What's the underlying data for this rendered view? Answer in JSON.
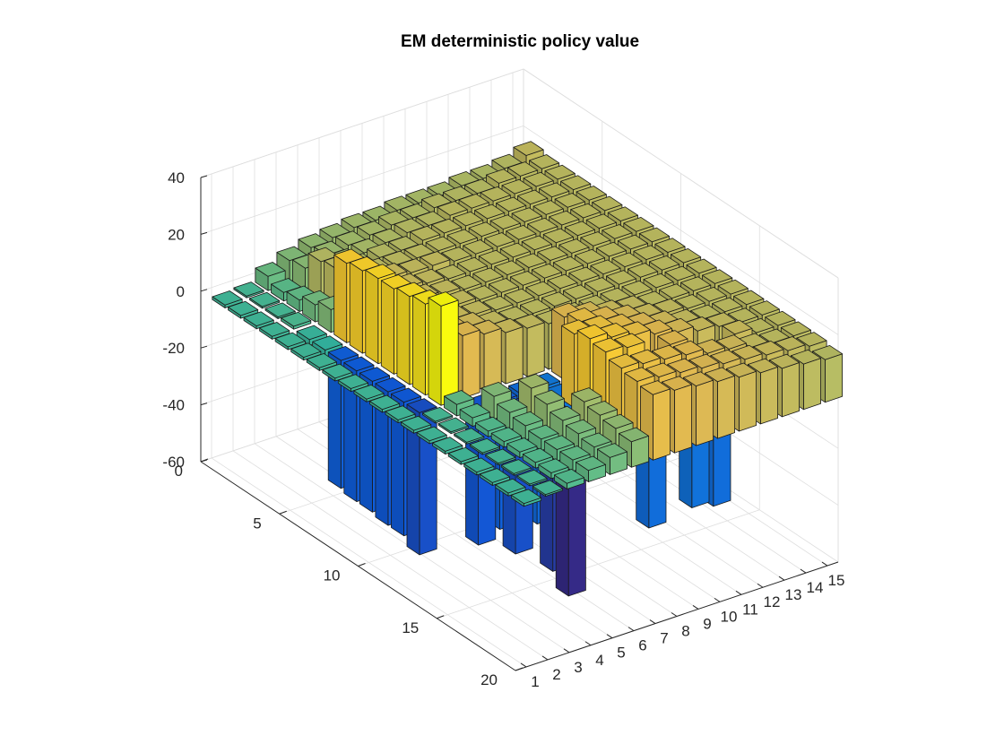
{
  "chart_data": {
    "type": "bar3",
    "title": "EM deterministic policy value",
    "xlabel": "",
    "ylabel": "",
    "zlabel": "",
    "x_ticks": [
      1,
      2,
      3,
      4,
      5,
      6,
      7,
      8,
      9,
      10,
      11,
      12,
      13,
      14,
      15
    ],
    "y_ticks": [
      0,
      5,
      10,
      15,
      20
    ],
    "z_ticks": [
      -60,
      -40,
      -20,
      0,
      20,
      40
    ],
    "xlim": [
      0.5,
      15.5
    ],
    "ylim": [
      0,
      20
    ],
    "zlim": [
      -60,
      40
    ],
    "grid": true,
    "colormap": "parula",
    "rows": 20,
    "cols": 15,
    "values": [
      [
        -1,
        0,
        5,
        8,
        10,
        11,
        12,
        12,
        13,
        13,
        13,
        14,
        14,
        15,
        17
      ],
      [
        -1,
        0,
        3,
        9,
        11,
        12,
        13,
        14,
        14,
        15,
        15,
        15,
        16,
        16,
        16
      ],
      [
        -1,
        0,
        4,
        15,
        12,
        13,
        14,
        15,
        15,
        16,
        16,
        16,
        16,
        16,
        16
      ],
      [
        -1,
        1,
        6,
        16,
        14,
        15,
        15,
        16,
        16,
        16,
        16,
        16,
        16,
        16,
        16
      ],
      [
        -1,
        -2,
        8,
        18,
        16,
        16,
        16,
        16,
        16,
        16,
        16,
        16,
        16,
        16,
        16
      ],
      [
        -1,
        -3,
        28,
        20,
        18,
        17,
        17,
        16,
        16,
        16,
        16,
        16,
        16,
        16,
        16
      ],
      [
        -1,
        -45,
        29,
        19,
        18,
        17,
        16,
        16,
        16,
        16,
        16,
        16,
        16,
        16,
        16
      ],
      [
        -1,
        -46,
        30,
        19,
        18,
        17,
        16,
        16,
        16,
        16,
        16,
        16,
        16,
        16,
        16
      ],
      [
        -1,
        -46,
        30,
        20,
        18,
        17,
        16,
        16,
        16,
        16,
        16,
        16,
        16,
        16,
        16
      ],
      [
        -1,
        -47,
        31,
        20,
        18,
        17,
        16,
        16,
        16,
        16,
        16,
        16,
        16,
        16,
        16
      ],
      [
        -1,
        -47,
        32,
        21,
        19,
        17,
        16,
        16,
        16,
        16,
        16,
        16,
        16,
        16,
        16
      ],
      [
        -1,
        -50,
        35,
        22,
        20,
        18,
        17,
        16,
        16,
        16,
        16,
        16,
        16,
        16,
        16
      ],
      [
        -1,
        0,
        4,
        -48,
        -45,
        -40,
        -35,
        22,
        20,
        18,
        17,
        16,
        16,
        16,
        16
      ],
      [
        -1,
        0,
        3,
        8,
        -50,
        -42,
        -36,
        24,
        22,
        20,
        18,
        17,
        16,
        16,
        16
      ],
      [
        -1,
        0,
        2,
        6,
        12,
        -55,
        26,
        25,
        23,
        21,
        19,
        17,
        16,
        16,
        16
      ],
      [
        -1,
        0,
        2,
        5,
        10,
        -60,
        28,
        26,
        24,
        22,
        20,
        18,
        17,
        16,
        16
      ],
      [
        -1,
        0,
        2,
        4,
        8,
        12,
        27,
        26,
        -40,
        22,
        -38,
        -40,
        18,
        16,
        16
      ],
      [
        -1,
        0,
        2,
        4,
        7,
        11,
        25,
        24,
        23,
        22,
        20,
        19,
        17,
        16,
        16
      ],
      [
        -1,
        0,
        2,
        4,
        6,
        10,
        24,
        23,
        22,
        21,
        20,
        19,
        18,
        17,
        16
      ],
      [
        -1,
        0,
        2,
        4,
        6,
        9,
        23,
        22,
        21,
        20,
        19,
        18,
        17,
        16,
        15
      ]
    ]
  }
}
